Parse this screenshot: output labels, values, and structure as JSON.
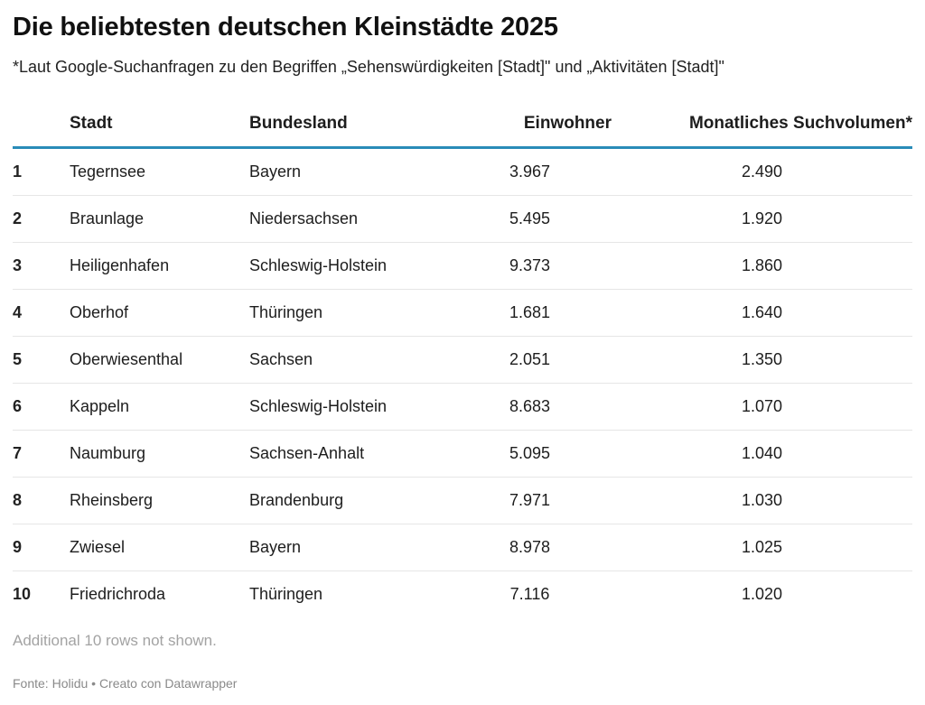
{
  "title": "Die beliebtesten deutschen Kleinstädte 2025",
  "subtitle": "*Laut Google-Suchanfragen zu den Begriffen „Sehenswürdigkeiten [Stadt]\" und „Aktivitäten [Stadt]\"",
  "chart_data": {
    "type": "table",
    "columns": [
      "",
      "Stadt",
      "Bundesland",
      "Einwohner",
      "Monatliches Suchvolumen*"
    ],
    "rows": [
      [
        "1",
        "Tegernsee",
        "Bayern",
        "3.967",
        "2.490"
      ],
      [
        "2",
        "Braunlage",
        "Niedersachsen",
        "5.495",
        "1.920"
      ],
      [
        "3",
        "Heiligenhafen",
        "Schleswig-Holstein",
        "9.373",
        "1.860"
      ],
      [
        "4",
        "Oberhof",
        "Thüringen",
        "1.681",
        "1.640"
      ],
      [
        "5",
        "Oberwiesenthal",
        "Sachsen",
        "2.051",
        "1.350"
      ],
      [
        "6",
        "Kappeln",
        "Schleswig-Holstein",
        "8.683",
        "1.070"
      ],
      [
        "7",
        "Naumburg",
        "Sachsen-Anhalt",
        "5.095",
        "1.040"
      ],
      [
        "8",
        "Rheinsberg",
        "Brandenburg",
        "7.971",
        "1.030"
      ],
      [
        "9",
        "Zwiesel",
        "Bayern",
        "8.978",
        "1.025"
      ],
      [
        "10",
        "Friedrichroda",
        "Thüringen",
        "7.116",
        "1.020"
      ]
    ]
  },
  "note": "Additional 10 rows not shown.",
  "footer": "Fonte: Holidu • Creato con Datawrapper",
  "colors": {
    "header_rule": "#2a8cb8",
    "row_rule": "#e6e6e6",
    "muted_text": "#a3a3a3"
  }
}
